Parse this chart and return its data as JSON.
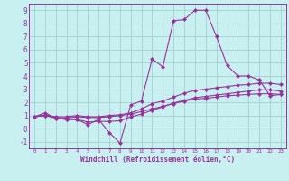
{
  "xlabel": "Windchill (Refroidissement éolien,°C)",
  "ylabel": "",
  "xlim": [
    -0.5,
    23.5
  ],
  "ylim": [
    -1.5,
    9.5
  ],
  "xticks": [
    0,
    1,
    2,
    3,
    4,
    5,
    6,
    7,
    8,
    9,
    10,
    11,
    12,
    13,
    14,
    15,
    16,
    17,
    18,
    19,
    20,
    21,
    22,
    23
  ],
  "yticks": [
    -1,
    0,
    1,
    2,
    3,
    4,
    5,
    6,
    7,
    8,
    9
  ],
  "bg_color": "#c8f0f0",
  "grid_color": "#a0c8c8",
  "line_color": "#993399",
  "line1_x": [
    0,
    1,
    2,
    3,
    4,
    5,
    6,
    7,
    8,
    9,
    10,
    11,
    12,
    13,
    14,
    15,
    16,
    17,
    18,
    19,
    20,
    21,
    22,
    23
  ],
  "line1_y": [
    0.9,
    1.2,
    0.8,
    0.7,
    0.7,
    0.3,
    0.7,
    -0.3,
    -1.1,
    1.8,
    2.1,
    5.3,
    4.7,
    8.2,
    8.3,
    9.0,
    9.0,
    7.0,
    4.8,
    4.0,
    4.0,
    3.7,
    2.5,
    2.6
  ],
  "line2_x": [
    0,
    1,
    2,
    3,
    4,
    5,
    6,
    7,
    8,
    9,
    10,
    11,
    12,
    13,
    14,
    15,
    16,
    17,
    18,
    19,
    20,
    21,
    22,
    23
  ],
  "line2_y": [
    0.9,
    1.0,
    0.85,
    0.8,
    0.9,
    0.85,
    0.85,
    0.9,
    1.0,
    1.1,
    1.3,
    1.5,
    1.7,
    1.9,
    2.1,
    2.25,
    2.3,
    2.4,
    2.5,
    2.55,
    2.6,
    2.65,
    2.65,
    2.6
  ],
  "line3_x": [
    0,
    1,
    2,
    3,
    4,
    5,
    6,
    7,
    8,
    9,
    10,
    11,
    12,
    13,
    14,
    15,
    16,
    17,
    18,
    19,
    20,
    21,
    22,
    23
  ],
  "line3_y": [
    0.9,
    1.0,
    0.8,
    0.7,
    0.7,
    0.5,
    0.55,
    0.55,
    0.6,
    0.9,
    1.1,
    1.4,
    1.65,
    1.95,
    2.15,
    2.35,
    2.45,
    2.55,
    2.65,
    2.75,
    2.85,
    2.95,
    2.95,
    2.85
  ],
  "line4_x": [
    0,
    1,
    2,
    3,
    4,
    5,
    6,
    7,
    8,
    9,
    10,
    11,
    12,
    13,
    14,
    15,
    16,
    17,
    18,
    19,
    20,
    21,
    22,
    23
  ],
  "line4_y": [
    0.9,
    1.05,
    0.9,
    0.9,
    1.0,
    0.9,
    0.9,
    1.0,
    1.05,
    1.2,
    1.5,
    1.9,
    2.1,
    2.4,
    2.7,
    2.9,
    3.0,
    3.1,
    3.2,
    3.3,
    3.35,
    3.45,
    3.45,
    3.35
  ],
  "marker": "D",
  "markersize": 2.5,
  "linewidth": 0.8,
  "tick_fontsize_x": 4.2,
  "tick_fontsize_y": 5.5,
  "xlabel_fontsize": 5.5
}
